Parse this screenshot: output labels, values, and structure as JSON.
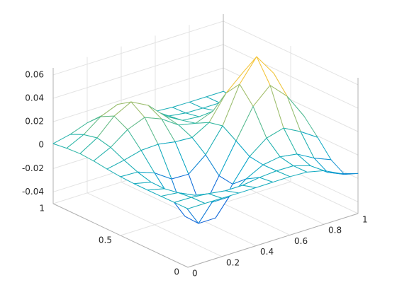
{
  "chart_data": {
    "type": "mesh",
    "x": [
      0,
      0.1,
      0.2,
      0.3,
      0.4,
      0.5,
      0.6,
      0.7,
      0.8,
      0.9,
      1
    ],
    "y": [
      0,
      0.1,
      0.2,
      0.3,
      0.4,
      0.5,
      0.6,
      0.7,
      0.8,
      0.9,
      1
    ],
    "z": [
      [
        0,
        0,
        -0.0002,
        -0.0003,
        -0.0003,
        -0.0002,
        -0.0001,
        -0.0008,
        -0.0042,
        -0.0113,
        -0.0158
      ],
      [
        0,
        -0.0003,
        -0.0017,
        -0.0038,
        -0.0038,
        -0.0017,
        -0.0006,
        -0.0009,
        -0.0055,
        -0.0156,
        -0.022
      ],
      [
        -0.0002,
        -0.0017,
        -0.0086,
        -0.0191,
        -0.0191,
        -0.0084,
        -0.0009,
        0.0014,
        -0.0009,
        -0.0089,
        -0.0149
      ],
      [
        -0.0003,
        -0.0038,
        -0.0191,
        -0.0426,
        -0.0425,
        -0.0182,
        0.0008,
        0.0119,
        0.0159,
        0.0083,
        -0.0012
      ],
      [
        -0.0003,
        -0.0036,
        -0.0186,
        -0.042,
        -0.0419,
        -0.0165,
        0.0087,
        0.0336,
        0.047,
        0.0331,
        0.0114
      ],
      [
        0.0002,
        -0.0004,
        -0.0058,
        -0.0155,
        -0.016,
        -0.004,
        0.0161,
        0.0471,
        0.066,
        0.0473,
        0.0171
      ],
      [
        0.0013,
        0.0043,
        0.0081,
        0.0087,
        0.0062,
        0.0053,
        0.0135,
        0.0341,
        0.0473,
        0.0339,
        0.0125
      ],
      [
        0.0028,
        0.0098,
        0.0204,
        0.0262,
        0.0203,
        0.0105,
        0.0074,
        0.013,
        0.0174,
        0.0125,
        0.0046
      ],
      [
        0.0036,
        0.0125,
        0.0265,
        0.034,
        0.0265,
        0.0127,
        0.0045,
        0.003,
        0.0033,
        0.0024,
        0.0009
      ],
      [
        0.0028,
        0.0098,
        0.0206,
        0.0265,
        0.0206,
        0.0098,
        0.0028,
        0.0007,
        0.0003,
        0.0002,
        0
      ],
      [
        0.0013,
        0.0046,
        0.0098,
        0.0125,
        0.0098,
        0.0046,
        0.0013,
        0.0002,
        0,
        0,
        0
      ]
    ],
    "xlim": [
      0,
      1
    ],
    "ylim": [
      0,
      1
    ],
    "zlim": [
      -0.05,
      0.066
    ],
    "xticks": [
      0,
      0.2,
      0.4,
      0.6,
      0.8,
      1
    ],
    "yticks": [
      0,
      0.5,
      1
    ],
    "zticks": [
      -0.04,
      -0.02,
      0,
      0.02,
      0.04,
      0.06
    ],
    "grid": true,
    "colormap": [
      "#352a87",
      "#0f5cdd",
      "#1481d6",
      "#06a4ca",
      "#2eb7a4",
      "#87bf77",
      "#d1bb59",
      "#fec832",
      "#f9fb0e"
    ]
  }
}
